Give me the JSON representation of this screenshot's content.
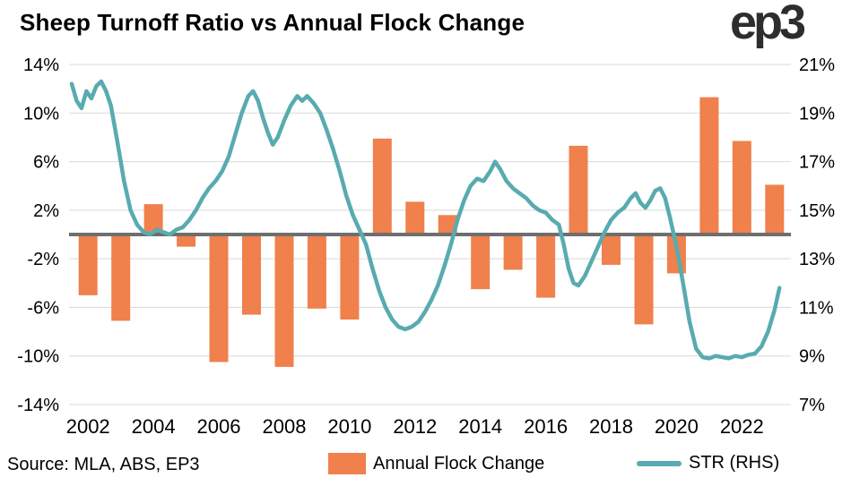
{
  "header": {
    "title": "Sheep Turnoff Ratio vs Annual Flock Change",
    "logo": "ep3"
  },
  "footer": {
    "source": "Source: MLA, ABS, EP3",
    "legend": {
      "bar_label": "Annual Flock Change",
      "line_label": "STR (RHS)"
    }
  },
  "colors": {
    "bar": "#F0804C",
    "line": "#58ABB0",
    "zero_line": "#6E6E6E",
    "grid": "#D9D9D9",
    "text": "#000000",
    "logo": "#2D2D2D"
  },
  "chart_data": {
    "type": "combo",
    "title": "Sheep Turnoff Ratio vs Annual Flock Change",
    "grid": true,
    "legend_position": "bottom",
    "x_axis": {
      "start_year": 2002,
      "end_year": 2023,
      "tick_labels": [
        "2002",
        "2004",
        "2006",
        "2008",
        "2010",
        "2012",
        "2014",
        "2016",
        "2018",
        "2020",
        "2022"
      ]
    },
    "left_axis": {
      "min": -14,
      "max": 14,
      "tick_values": [
        14,
        10,
        6,
        2,
        -2,
        -6,
        -10,
        -14
      ],
      "tick_labels": [
        "14%",
        "10%",
        "6%",
        "2%",
        "-2%",
        "-6%",
        "-10%",
        "-14%"
      ]
    },
    "right_axis": {
      "min": 7,
      "max": 21,
      "tick_values": [
        21,
        19,
        17,
        15,
        13,
        11,
        9,
        7
      ],
      "tick_labels": [
        "21%",
        "19%",
        "17%",
        "15%",
        "13%",
        "11%",
        "9%",
        "7%"
      ]
    },
    "zero_line_value": 0,
    "bar_series": {
      "name": "Annual Flock Change",
      "axis": "left",
      "unit": "%",
      "categories": [
        2002,
        2003,
        2004,
        2005,
        2006,
        2007,
        2008,
        2009,
        2010,
        2011,
        2012,
        2013,
        2014,
        2015,
        2016,
        2017,
        2018,
        2019,
        2020,
        2021,
        2022,
        2023
      ],
      "values": [
        -5.0,
        -7.1,
        2.5,
        -1.0,
        -10.5,
        -6.6,
        -10.9,
        -6.1,
        -7.0,
        7.9,
        2.7,
        1.6,
        -4.5,
        -2.9,
        -5.2,
        7.3,
        -2.5,
        -7.4,
        -3.2,
        11.3,
        7.7,
        4.1
      ]
    },
    "line_series": {
      "name": "STR (RHS)",
      "axis": "right",
      "unit": "%",
      "x": [
        2002.0,
        2002.15,
        2002.3,
        2002.45,
        2002.6,
        2002.75,
        2002.9,
        2003.05,
        2003.2,
        2003.4,
        2003.6,
        2003.8,
        2004.0,
        2004.2,
        2004.4,
        2004.6,
        2004.8,
        2005.0,
        2005.2,
        2005.4,
        2005.6,
        2005.8,
        2006.0,
        2006.2,
        2006.4,
        2006.6,
        2006.8,
        2007.0,
        2007.2,
        2007.4,
        2007.55,
        2007.7,
        2007.85,
        2008.0,
        2008.15,
        2008.3,
        2008.5,
        2008.7,
        2008.9,
        2009.05,
        2009.2,
        2009.4,
        2009.6,
        2009.8,
        2010.0,
        2010.2,
        2010.4,
        2010.6,
        2010.8,
        2011.0,
        2011.2,
        2011.4,
        2011.6,
        2011.8,
        2012.0,
        2012.2,
        2012.4,
        2012.6,
        2012.8,
        2013.0,
        2013.2,
        2013.4,
        2013.6,
        2013.8,
        2014.0,
        2014.2,
        2014.4,
        2014.6,
        2014.8,
        2014.95,
        2015.1,
        2015.3,
        2015.5,
        2015.7,
        2015.9,
        2016.1,
        2016.3,
        2016.5,
        2016.7,
        2016.9,
        2017.05,
        2017.2,
        2017.35,
        2017.5,
        2017.7,
        2017.9,
        2018.1,
        2018.3,
        2018.5,
        2018.7,
        2018.9,
        2019.1,
        2019.25,
        2019.4,
        2019.55,
        2019.7,
        2019.85,
        2020.0,
        2020.15,
        2020.3,
        2020.5,
        2020.7,
        2020.9,
        2021.1,
        2021.3,
        2021.5,
        2021.7,
        2021.9,
        2022.1,
        2022.3,
        2022.5,
        2022.7,
        2022.9,
        2023.1,
        2023.3,
        2023.5,
        2023.65
      ],
      "values": [
        20.2,
        19.5,
        19.2,
        19.9,
        19.6,
        20.1,
        20.3,
        19.9,
        19.3,
        17.8,
        16.2,
        15.0,
        14.4,
        14.1,
        14.0,
        14.2,
        14.1,
        14.0,
        14.2,
        14.3,
        14.6,
        15.0,
        15.5,
        15.9,
        16.2,
        16.6,
        17.2,
        18.1,
        19.0,
        19.7,
        19.9,
        19.5,
        18.8,
        18.2,
        17.7,
        18.0,
        18.7,
        19.3,
        19.7,
        19.5,
        19.7,
        19.4,
        19.0,
        18.3,
        17.5,
        16.6,
        15.6,
        14.8,
        14.2,
        13.6,
        12.6,
        11.7,
        11.0,
        10.5,
        10.2,
        10.1,
        10.2,
        10.4,
        10.8,
        11.3,
        11.9,
        12.7,
        13.6,
        14.6,
        15.4,
        16.0,
        16.3,
        16.2,
        16.6,
        17.0,
        16.7,
        16.2,
        15.9,
        15.7,
        15.5,
        15.2,
        15.0,
        14.9,
        14.6,
        14.4,
        13.6,
        12.6,
        12.0,
        11.9,
        12.3,
        12.9,
        13.5,
        14.1,
        14.6,
        14.9,
        15.1,
        15.5,
        15.7,
        15.3,
        15.1,
        15.4,
        15.8,
        15.9,
        15.5,
        14.7,
        13.5,
        12.0,
        10.4,
        9.3,
        8.95,
        8.9,
        9.0,
        8.95,
        8.9,
        9.0,
        8.95,
        9.05,
        9.1,
        9.4,
        10.0,
        10.9,
        11.8
      ]
    }
  }
}
